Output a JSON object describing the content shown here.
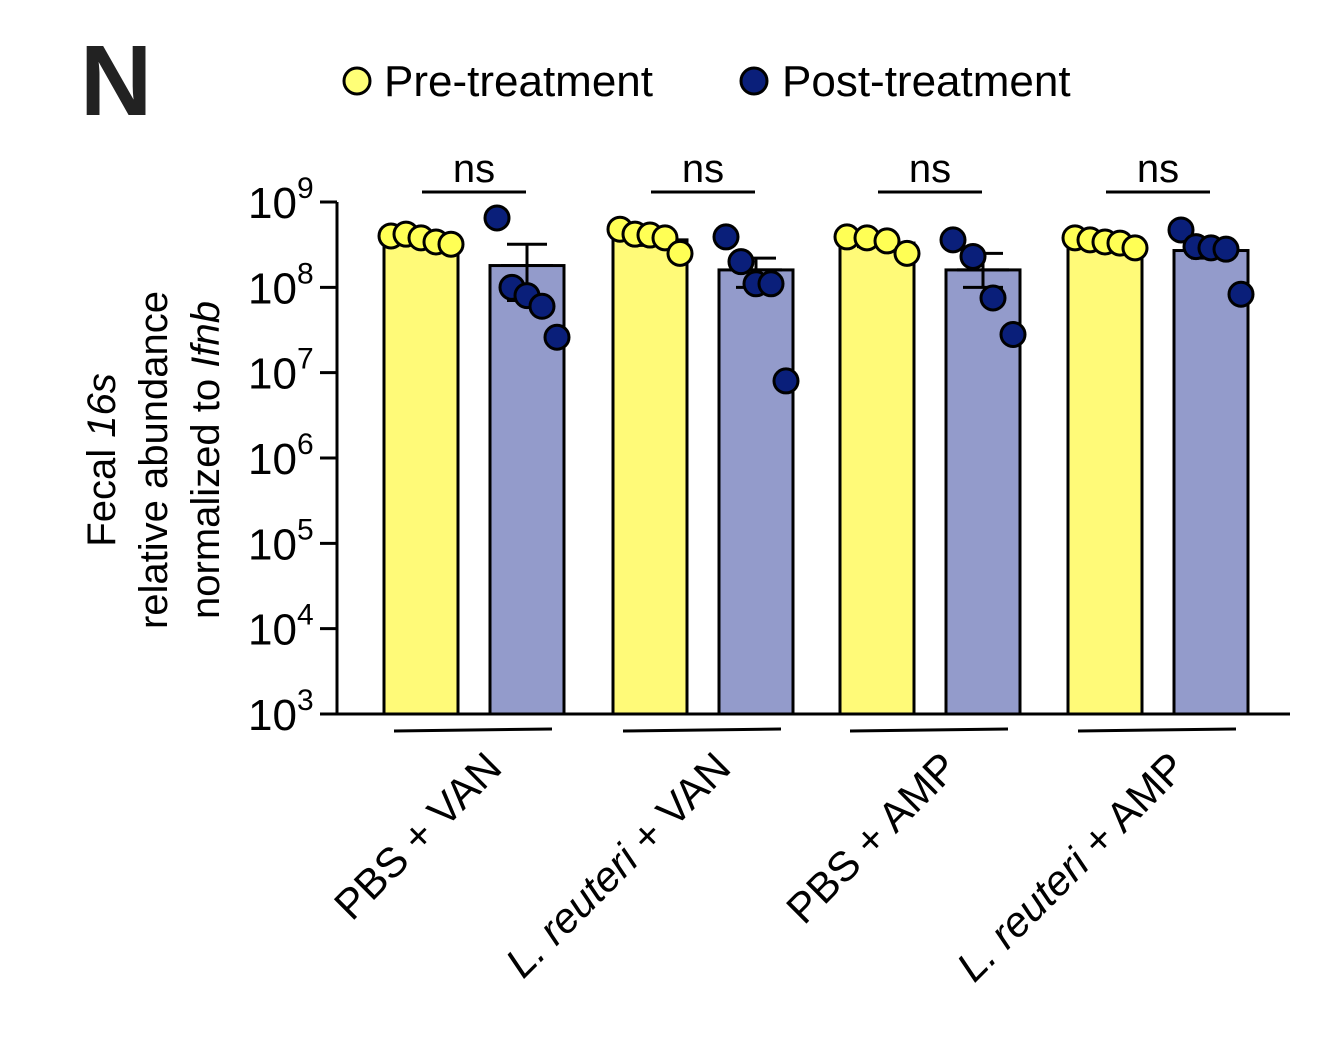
{
  "panel_label": "N",
  "legend": {
    "items": [
      {
        "label": "Pre-treatment",
        "color": "#FFFF77"
      },
      {
        "label": "Post-treatment",
        "color": "#0A1F7A"
      }
    ]
  },
  "colors": {
    "pre_bar": "#FFFA78",
    "pre_point": "#FFFF55",
    "post_bar": "#939BCB",
    "post_point": "#0A1F7A"
  },
  "chart_data": {
    "type": "bar",
    "yscale": "log",
    "ylim": [
      1000,
      1000000000
    ],
    "ylabel_lines": [
      [
        {
          "text": "Fecal "
        },
        {
          "text": "16s",
          "italic": true
        }
      ],
      [
        {
          "text": "relative abundance"
        }
      ],
      [
        {
          "text": "normalized to "
        },
        {
          "text": "Ifnb",
          "italic": true
        }
      ]
    ],
    "yticks": [
      {
        "base": "10",
        "exp": "3",
        "value": 1000
      },
      {
        "base": "10",
        "exp": "4",
        "value": 10000
      },
      {
        "base": "10",
        "exp": "5",
        "value": 100000
      },
      {
        "base": "10",
        "exp": "6",
        "value": 1000000
      },
      {
        "base": "10",
        "exp": "7",
        "value": 10000000
      },
      {
        "base": "10",
        "exp": "8",
        "value": 100000000
      },
      {
        "base": "10",
        "exp": "9",
        "value": 1000000000
      }
    ],
    "categories": [
      [
        {
          "text": "PBS + VAN"
        }
      ],
      [
        {
          "text": "L. reuteri",
          "italic": true
        },
        {
          "text": " + VAN"
        }
      ],
      [
        {
          "text": "PBS + AMP"
        }
      ],
      [
        {
          "text": "L. reuteri",
          "italic": true
        },
        {
          "text": " + AMP"
        }
      ]
    ],
    "series": [
      {
        "name": "Pre-treatment",
        "values": [
          350000000,
          360000000,
          330000000,
          330000000
        ],
        "sem_upper": [
          390000000,
          420000000,
          370000000,
          350000000
        ],
        "sem_lower": [
          320000000,
          310000000,
          300000000,
          310000000
        ],
        "points": [
          [
            400000000,
            420000000,
            380000000,
            340000000,
            320000000
          ],
          [
            480000000,
            420000000,
            410000000,
            380000000,
            250000000
          ],
          [
            390000000,
            380000000,
            350000000,
            250000000
          ],
          [
            380000000,
            360000000,
            340000000,
            330000000,
            290000000
          ]
        ]
      },
      {
        "name": "Post-treatment",
        "values": [
          180000000,
          160000000,
          160000000,
          270000000
        ],
        "sem_upper": [
          320000000,
          220000000,
          250000000,
          320000000
        ],
        "sem_lower": [
          70000000,
          100000000,
          100000000,
          220000000
        ],
        "points": [
          [
            650000000,
            100000000,
            80000000,
            60000000,
            26000000
          ],
          [
            390000000,
            200000000,
            110000000,
            110000000,
            8000000
          ],
          [
            360000000,
            230000000,
            75000000,
            28000000
          ],
          [
            470000000,
            300000000,
            290000000,
            280000000,
            83000000
          ]
        ]
      }
    ],
    "annotations": [
      "ns",
      "ns",
      "ns",
      "ns"
    ],
    "legend_position": "top-center"
  }
}
